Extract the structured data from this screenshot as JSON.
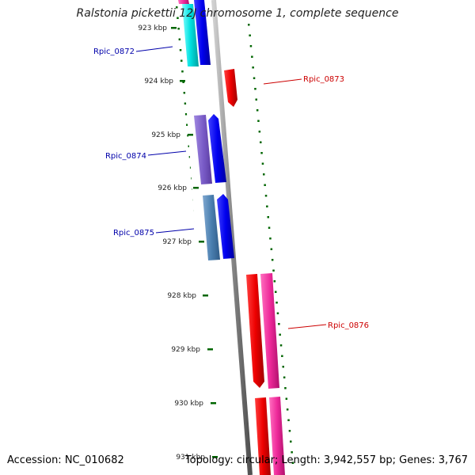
{
  "title": "Ralstonia pickettii 12J chromosome 1, complete sequence",
  "accession": "Accession: NC_010682",
  "topology": "Topology: circular; Length: 3,942,557 bp; Genes: 3,767",
  "kbp_labels": [
    "923 kbp",
    "924 kbp",
    "925 kbp",
    "926 kbp",
    "927 kbp",
    "928 kbp",
    "929 kbp",
    "930 kbp",
    "931 kbp"
  ],
  "genes": [
    {
      "name": "Rpic_0872",
      "color": "#0000aa"
    },
    {
      "name": "Rpic_0873",
      "color": "#cc0000"
    },
    {
      "name": "Rpic_0874",
      "color": "#0000aa"
    },
    {
      "name": "Rpic_0875",
      "color": "#0000aa"
    },
    {
      "name": "Rpic_0876",
      "color": "#cc0000"
    }
  ],
  "colors": {
    "backbone": "#808080",
    "forward_cds": "#0000ee",
    "reverse_cds": "#ee0000",
    "tick": "#006600",
    "cyan_feature": "#00e5e5",
    "purple_feature": "#7a5cc8",
    "steel_feature": "#4a7fb0",
    "magenta_feature": "#ee2a9a"
  }
}
